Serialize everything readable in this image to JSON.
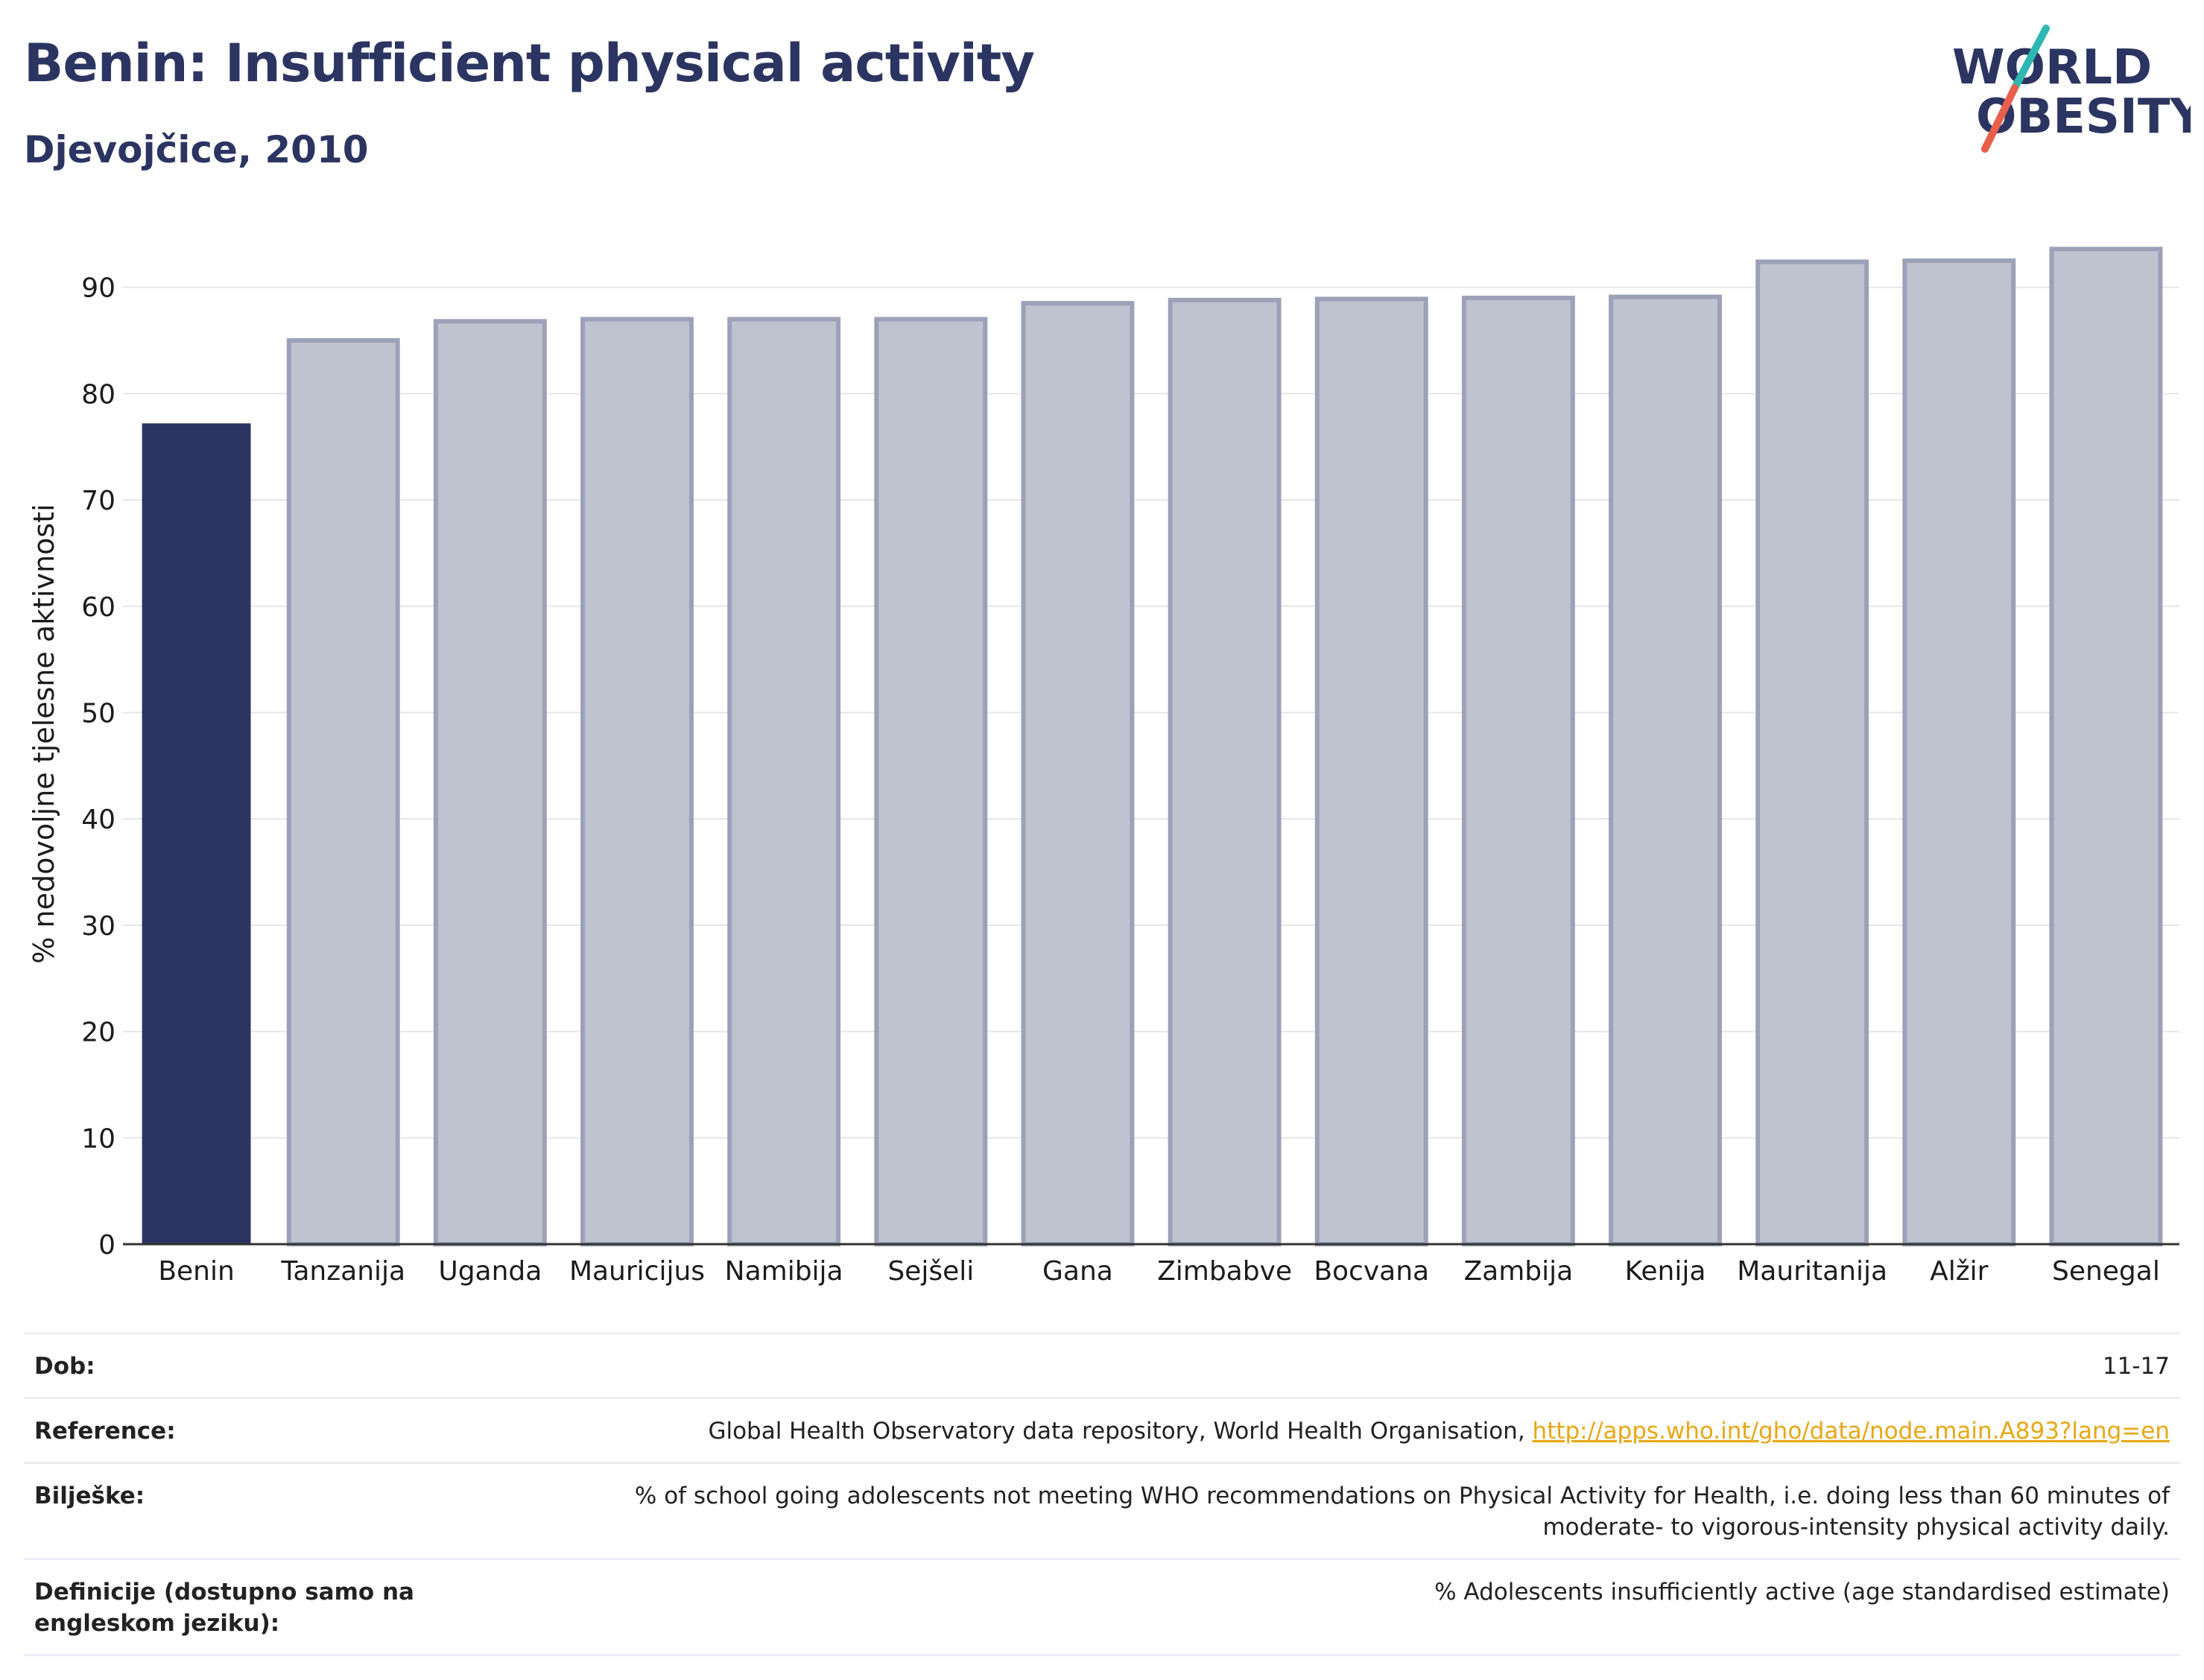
{
  "header": {
    "title": "Benin: Insufficient physical activity",
    "subtitle": "Djevojčice, 2010"
  },
  "logo": {
    "line1": "WORLD",
    "line2": "OBESITY",
    "colors": {
      "text": "#2c3561",
      "slash_teal": "#2fb7b2",
      "slash_red": "#e8604c"
    }
  },
  "chart_data": {
    "type": "bar",
    "categories": [
      "Benin",
      "Tanzanija",
      "Uganda",
      "Mauricijus",
      "Namibija",
      "Sejšeli",
      "Gana",
      "Zimbabve",
      "Bocvana",
      "Zambija",
      "Kenija",
      "Mauritanija",
      "Alžir",
      "Senegal"
    ],
    "values": [
      77.2,
      85.0,
      86.8,
      87.0,
      87.0,
      87.0,
      88.5,
      88.8,
      88.9,
      89.0,
      89.1,
      92.4,
      92.5,
      93.6
    ],
    "highlight": "Benin",
    "title": "",
    "xlabel": "",
    "ylabel": "% nedovoljne tjelesne aktivnosti",
    "ylim": [
      0,
      96
    ],
    "yticks": [
      0,
      10,
      20,
      30,
      40,
      50,
      60,
      70,
      80,
      90
    ],
    "grid": true,
    "colors": {
      "highlight": "#2c3561",
      "other_fill": "#bfc2cf",
      "other_border": "#9ca1b8",
      "grid": "#e6e6ea",
      "axis": "#333333"
    }
  },
  "info": {
    "rows": [
      {
        "label": "Dob:",
        "value": "11-17"
      },
      {
        "label": "Reference:",
        "value": "Global Health Observatory data repository, World Health Organisation, ",
        "link": "http://apps.who.int/gho/data/node.main.A893?lang=en"
      },
      {
        "label": "Bilješke:",
        "value": "% of school going adolescents not meeting WHO recommendations on Physical Activity for Health, i.e. doing less than 60 minutes of moderate- to vigorous-intensity physical activity daily."
      },
      {
        "label": "Definicije (dostupno samo na engleskom jeziku):",
        "value": "% Adolescents insufficiently active (age standardised estimate)"
      }
    ]
  }
}
